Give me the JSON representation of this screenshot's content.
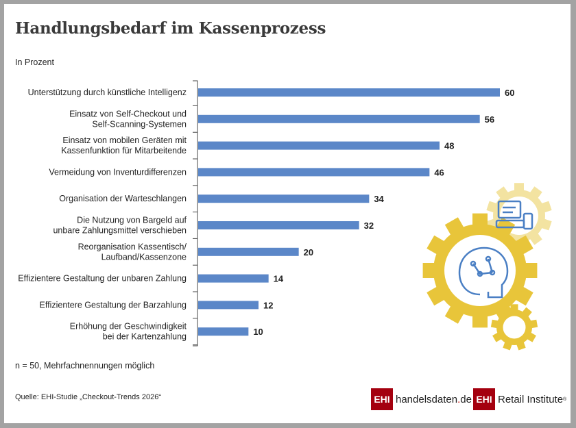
{
  "title": "Handlungsbedarf im Kassenprozess",
  "subtitle": "In Prozent",
  "note": "n = 50, Mehrfachnennungen möglich",
  "source": "Quelle: EHI-Studie „Checkout-Trends 2026“",
  "logos": {
    "mark": "EHI",
    "site_a": "handelsdaten",
    "site_dot": ".",
    "site_b": "de",
    "brand": "Retail Institute",
    "reg": "®"
  },
  "colors": {
    "bar": "#5b87c8",
    "gear_yellow": "#e8c53a",
    "gear_light": "#f3e3a1",
    "icon_blue": "#4a7fc4",
    "logo_red": "#a4000f"
  },
  "chart_data": {
    "type": "bar",
    "orientation": "horizontal",
    "grid": false,
    "categories": [
      [
        "Unterstützung durch künstliche Intelligenz"
      ],
      [
        "Einsatz von Self-Checkout und",
        "Self-Scanning-Systemen"
      ],
      [
        "Einsatz von mobilen Geräten mit",
        "Kassenfunktion für Mitarbeitende"
      ],
      [
        "Vermeidung von Inventurdifferenzen"
      ],
      [
        "Organisation der Warteschlangen"
      ],
      [
        "Die Nutzung von Bargeld auf",
        "unbare Zahlungsmittel verschieben"
      ],
      [
        "Reorganisation Kassentisch/",
        "Laufband/Kassenzone"
      ],
      [
        "Effizientere Gestaltung der unbaren Zahlung"
      ],
      [
        "Effizientere Gestaltung der Barzahlung"
      ],
      [
        "Erhöhung der Geschwindigkeit",
        "bei der Kartenzahlung"
      ]
    ],
    "values": [
      60,
      56,
      48,
      46,
      34,
      32,
      20,
      14,
      12,
      10
    ],
    "xlim": [
      0,
      60
    ]
  }
}
